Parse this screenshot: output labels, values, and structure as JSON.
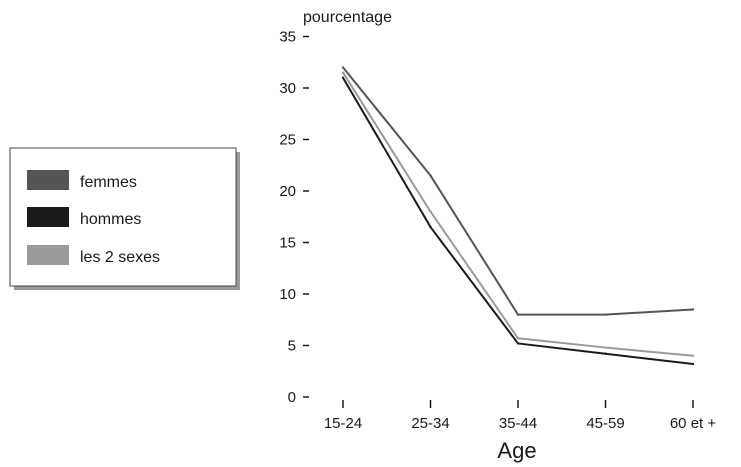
{
  "chart_data": {
    "type": "line",
    "title": "",
    "ylabel": "pourcentage",
    "xlabel": "Age",
    "categories": [
      "15-24",
      "25-34",
      "35-44",
      "45-59",
      "60 et +"
    ],
    "ylim": [
      0,
      35
    ],
    "yticks": [
      "0",
      "5",
      "10",
      "15",
      "20",
      "25",
      "30",
      "35"
    ],
    "grid": false,
    "legend_position": "left",
    "series": [
      {
        "name": "femmes",
        "values": [
          32,
          21.5,
          8,
          8,
          8.5
        ],
        "color": "#555555"
      },
      {
        "name": "hommes",
        "values": [
          31,
          16.5,
          5.2,
          4.2,
          3.2
        ],
        "color": "#1a1a1a"
      },
      {
        "name": "les 2 sexes",
        "values": [
          31.5,
          18,
          5.7,
          4.8,
          4
        ],
        "color": "#9a9a9a"
      }
    ]
  }
}
